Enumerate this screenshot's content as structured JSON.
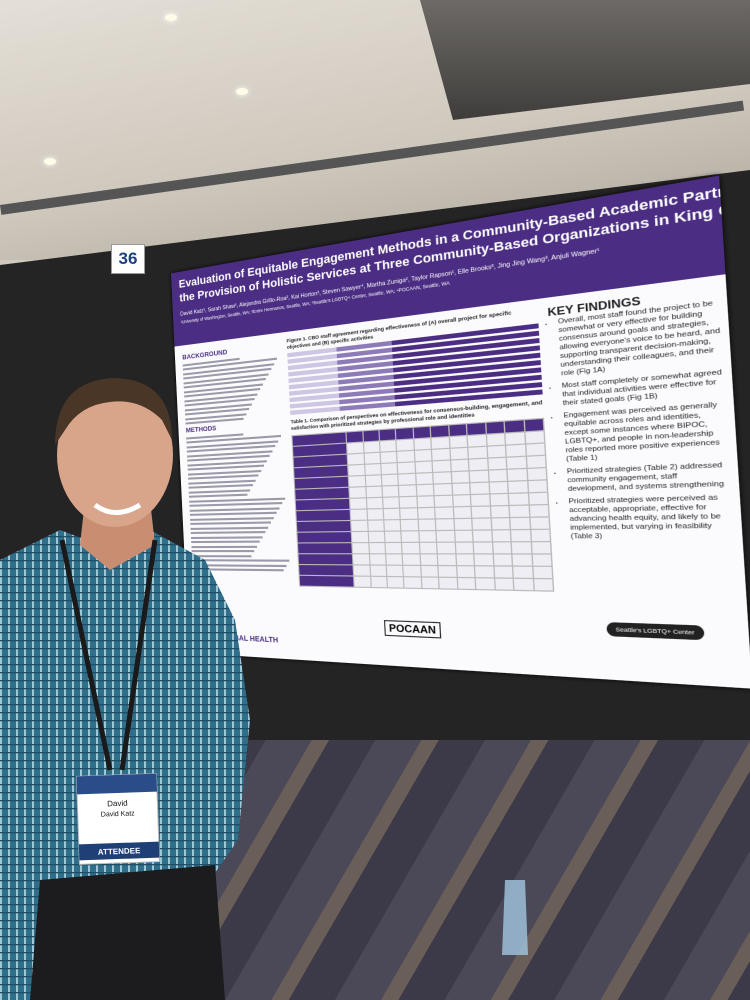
{
  "poster_number": "36",
  "poster": {
    "title_lines": [
      "Evaluation of Equitable Engagement Methods in a Community-Based Academic Partn",
      "the Provision of Holistic Services at Three Community-Based Organizations in King Co"
    ],
    "authors": "David Katz¹, Sarah Shaw¹, Alejandra Grillo-Roa², Kai Horton³, Steven Sawyer⁴, Martha Zuniga², Taylor Rapson¹, Elle Brooks³, Jing Jing Wang³, Anjuli Wagner¹",
    "affiliations": "¹University of Washington, Seattle, WA; ²Entre Hermanos, Seattle, WA; ³Seattle's LGBTQ+ Center, Seattle, WA; ⁴POCAAN, Seattle, WA",
    "background_heading": "BACKGROUND",
    "methods_heading": "METHODS",
    "figure_caption": "Figure 1. CBO staff agreement regarding effectiveness of (A) overall project for specific objectives and (B) specific activities",
    "table_caption": "Table 1. Comparison of perspectives on effectiveness for consensus-building, engagement, and satisfaction with prioritized strategies by professional role and identities",
    "key_findings": {
      "heading": "KEY FINDINGS",
      "items": [
        "Overall, most staff found the project to be somewhat or very effective for building consensus around goals and strategies, allowing everyone's voice to be heard, and supporting transparent decision-making, understanding their colleagues, and their role (Fig 1A)",
        "Most staff completely or somewhat agreed that individual activities were effective for their stated goals (Fig 1B)",
        "Engagement was perceived as generally equitable across roles and identities, except some instances where BIPOC, LGBTQ+, and people in non-leadership roles reported more positive experiences (Table 1)",
        "Prioritized strategies (Table 2) addressed community engagement, staff development, and systems strengthening",
        "Prioritized strategies were perceived as acceptable, appropriate, effective for advancing health equity, and likely to be implemented, but varying in feasibility (Table 3)"
      ]
    },
    "logos": [
      "POCAAN",
      "Seattle's LGBTQ+ Center"
    ],
    "footer": "NT OF GLOBAL HEALTH"
  },
  "badge": {
    "first_name": "David",
    "full_name": "David Katz",
    "role": "ATTENDEE"
  }
}
